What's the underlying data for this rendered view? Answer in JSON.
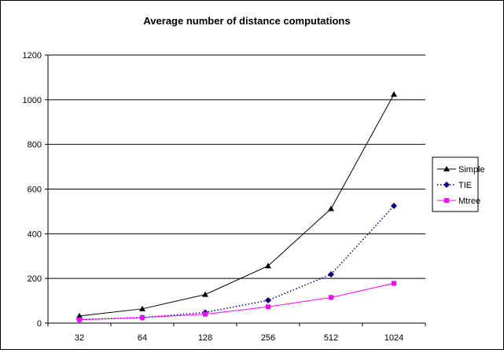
{
  "chart_data": {
    "type": "line",
    "title": "Average number of  distance computations",
    "xlabel": "",
    "ylabel": "",
    "categories": [
      "32",
      "64",
      "128",
      "256",
      "512",
      "1024"
    ],
    "ylim": [
      0,
      1200
    ],
    "yticks": [
      0,
      200,
      400,
      600,
      800,
      1000,
      1200
    ],
    "grid": true,
    "legend_position": "right",
    "series": [
      {
        "name": "Simple",
        "values": [
          32,
          64,
          128,
          256,
          512,
          1024
        ],
        "color": "#000000",
        "marker": "triangle",
        "line_style": "solid"
      },
      {
        "name": "TIE",
        "values": [
          16,
          25,
          48,
          102,
          218,
          525
        ],
        "color": "#000080",
        "marker": "diamond",
        "line_style": "dotted"
      },
      {
        "name": "Mtree",
        "values": [
          15,
          25,
          40,
          73,
          115,
          178
        ],
        "color": "#ff00ff",
        "marker": "square",
        "line_style": "solid"
      }
    ]
  }
}
